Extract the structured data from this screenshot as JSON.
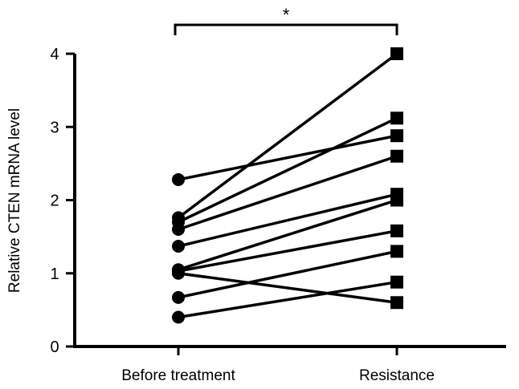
{
  "chart_data": {
    "type": "line",
    "title": "",
    "xlabel": "",
    "ylabel": "Relative CTEN mRNA level",
    "categories": [
      "Before treatment",
      "Resistance"
    ],
    "ylim": [
      0,
      4
    ],
    "yticks": [
      "0",
      "1",
      "2",
      "3",
      "4"
    ],
    "grid": false,
    "significance": "*",
    "pairs": [
      [
        2.28,
        2.88
      ],
      [
        1.76,
        4.0
      ],
      [
        1.7,
        3.12
      ],
      [
        1.6,
        2.6
      ],
      [
        1.37,
        2.08
      ],
      [
        1.05,
        2.0
      ],
      [
        1.03,
        1.58
      ],
      [
        1.0,
        0.6
      ],
      [
        0.67,
        1.3
      ],
      [
        0.4,
        0.88
      ]
    ],
    "markers": {
      "before": "circle",
      "after": "square"
    },
    "color": "#000000"
  }
}
